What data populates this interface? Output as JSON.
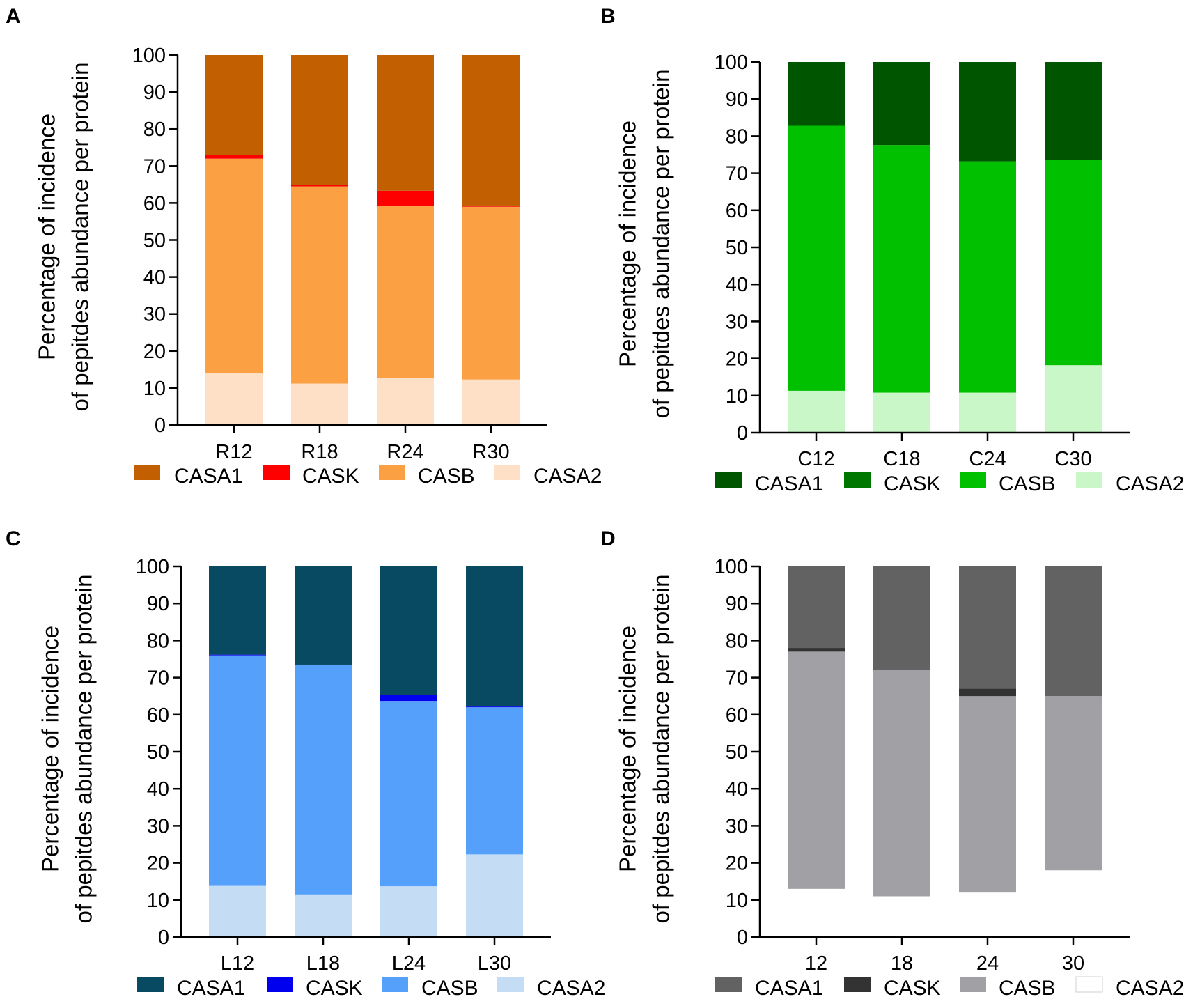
{
  "chart_data": [
    {
      "type": "bar",
      "stacked": true,
      "panel_label": "A",
      "title": "",
      "xlabel": "",
      "ylabel_lines": [
        "Percentage of incidence",
        "of pepitdes abundance per protein"
      ],
      "ylim": [
        0,
        100
      ],
      "yticks": [
        0,
        10,
        20,
        30,
        40,
        50,
        60,
        70,
        80,
        90,
        100
      ],
      "categories": [
        "R12",
        "R18",
        "R24",
        "R30"
      ],
      "series": [
        {
          "name": "CASA2",
          "values": [
            14,
            11.2,
            12.8,
            12.3
          ],
          "color": "#fde0c5"
        },
        {
          "name": "CASB",
          "values": [
            58,
            53.3,
            46.5,
            46.7
          ],
          "color": "#fba143"
        },
        {
          "name": "CASK",
          "values": [
            1,
            0.3,
            4,
            0.3
          ],
          "color": "#ff0000"
        },
        {
          "name": "CASA1",
          "values": [
            27,
            35.2,
            36.7,
            40.7
          ],
          "color": "#c25f00"
        }
      ],
      "legend": [
        "CASA1",
        "CASK",
        "CASB",
        "CASA2"
      ]
    },
    {
      "type": "bar",
      "stacked": true,
      "panel_label": "B",
      "title": "",
      "xlabel": "",
      "ylabel_lines": [
        "Percentage of incidence",
        "of pepitdes abundance per protein"
      ],
      "ylim": [
        0,
        100
      ],
      "yticks": [
        0,
        10,
        20,
        30,
        40,
        50,
        60,
        70,
        80,
        90,
        100
      ],
      "categories": [
        "C12",
        "C18",
        "C24",
        "C30"
      ],
      "series": [
        {
          "name": "CASA2",
          "values": [
            11.3,
            10.8,
            10.8,
            18.2
          ],
          "color": "#c9f7c8"
        },
        {
          "name": "CASB",
          "values": [
            71.5,
            66.8,
            62.4,
            55.4
          ],
          "color": "#00c000"
        },
        {
          "name": "CASK",
          "values": [
            0,
            0,
            0,
            0
          ],
          "color": "#007700"
        },
        {
          "name": "CASA1",
          "values": [
            17.2,
            22.4,
            26.8,
            26.4
          ],
          "color": "#005500"
        }
      ],
      "legend": [
        "CASA1",
        "CASK",
        "CASB",
        "CASA2"
      ]
    },
    {
      "type": "bar",
      "stacked": true,
      "panel_label": "C",
      "title": "",
      "xlabel": "",
      "ylabel_lines": [
        "Percentage of incidence",
        "of pepitdes abundance per protein"
      ],
      "ylim": [
        0,
        100
      ],
      "yticks": [
        0,
        10,
        20,
        30,
        40,
        50,
        60,
        70,
        80,
        90,
        100
      ],
      "categories": [
        "L12",
        "L18",
        "L24",
        "L30"
      ],
      "series": [
        {
          "name": "CASA2",
          "values": [
            13.8,
            11.5,
            13.7,
            22.3
          ],
          "color": "#c5dcf5"
        },
        {
          "name": "CASB",
          "values": [
            62.2,
            62,
            50,
            39.7
          ],
          "color": "#55a0fa"
        },
        {
          "name": "CASK",
          "values": [
            0.2,
            0,
            1.6,
            0.2
          ],
          "color": "#0000ee"
        },
        {
          "name": "CASA1",
          "values": [
            23.8,
            26.5,
            34.7,
            37.8
          ],
          "color": "#074a61"
        }
      ],
      "legend": [
        "CASA1",
        "CASK",
        "CASB",
        "CASA2"
      ]
    },
    {
      "type": "bar",
      "stacked": true,
      "panel_label": "D",
      "title": "",
      "xlabel": "",
      "ylabel_lines": [
        "Percentage of incidence",
        "of pepitdes abundance per protein"
      ],
      "ylim": [
        0,
        100
      ],
      "yticks": [
        0,
        10,
        20,
        30,
        40,
        50,
        60,
        70,
        80,
        90,
        100
      ],
      "categories": [
        "12",
        "18",
        "24",
        "30"
      ],
      "series": [
        {
          "name": "CASA2",
          "values": [
            13,
            11,
            12,
            18
          ],
          "color": "#ffffff"
        },
        {
          "name": "CASB",
          "values": [
            64,
            61,
            53,
            47
          ],
          "color": "#a1a1a5"
        },
        {
          "name": "CASK",
          "values": [
            1,
            0,
            2,
            0
          ],
          "color": "#333333"
        },
        {
          "name": "CASA1",
          "values": [
            22,
            28,
            33,
            35
          ],
          "color": "#626262"
        }
      ],
      "legend": [
        "CASA1",
        "CASK",
        "CASB",
        "CASA2"
      ]
    }
  ]
}
